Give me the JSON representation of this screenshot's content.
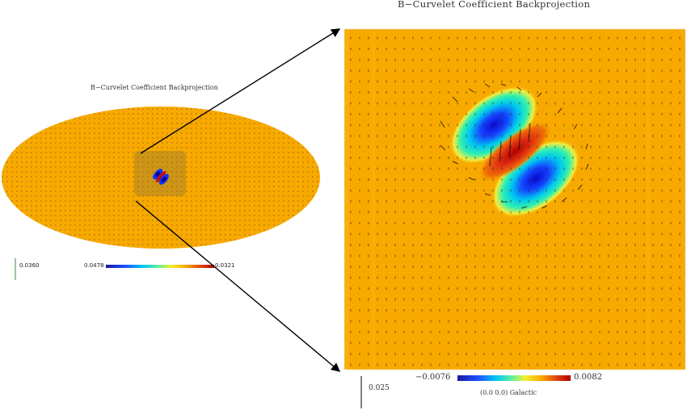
{
  "left_map": {
    "title": "B−Curvelet Coefficient  Backprojection",
    "scale_value": "0.0360",
    "colorbar_min": "0.0478",
    "colorbar_max": "0.0321"
  },
  "zoom_map": {
    "title": "B−Curvelet Coefficient  Backprojection",
    "scale_value": "0.025",
    "colorbar_min": "−0.0076",
    "colorbar_max": "0.0082",
    "coords_label": "(0.0  0.0) Galactic"
  },
  "colors": {
    "background_field": "#f8a900",
    "colormap": [
      "#0a0a9a",
      "#1e3cff",
      "#00c8f0",
      "#20f0c0",
      "#f0f030",
      "#f8a900",
      "#e03c10",
      "#a00000"
    ]
  }
}
